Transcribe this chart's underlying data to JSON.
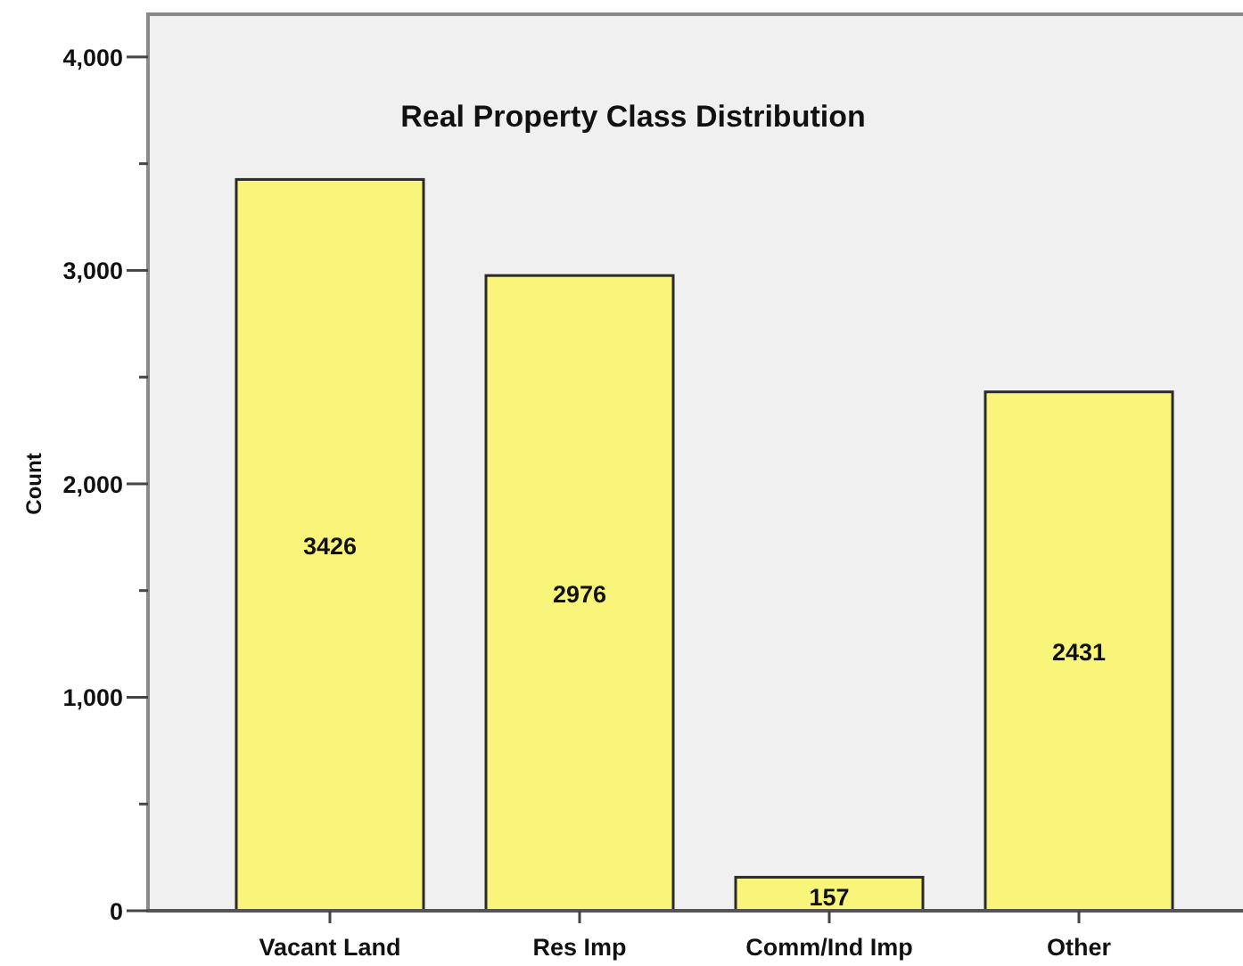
{
  "chart_data": {
    "type": "bar",
    "title": "Real Property Class Distribution",
    "ylabel": "Count",
    "categories": [
      "Vacant Land",
      "Res Imp",
      "Comm/Ind Imp",
      "Other"
    ],
    "values": [
      3426,
      2976,
      157,
      2431
    ],
    "color": "#f8f57a",
    "data_labels": true,
    "ylim": [
      0,
      4200
    ],
    "yticks": [
      0,
      {
        "value": 500,
        "label": null
      },
      {
        "value": 1000,
        "label": "1,000"
      },
      {
        "value": 1500,
        "label": null
      },
      {
        "value": 2000,
        "label": "2,000"
      },
      {
        "value": 2500,
        "label": null
      },
      {
        "value": 3000,
        "label": "3,000"
      },
      {
        "value": 3500,
        "label": null
      },
      {
        "value": 4000,
        "label": "4,000"
      }
    ]
  }
}
